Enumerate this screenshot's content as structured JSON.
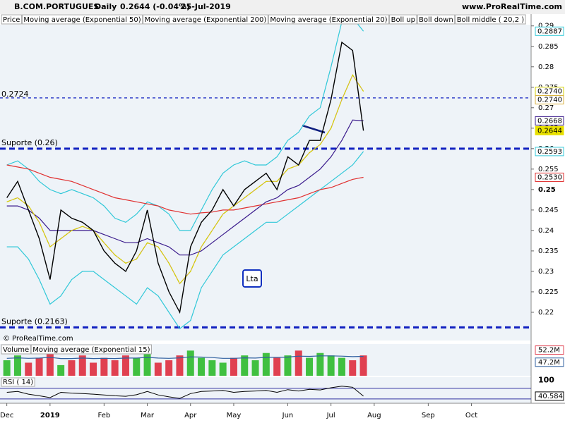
{
  "header": {
    "symbol": "B.COM.PORTUGUES",
    "period": "Daily",
    "quote": "0.2644 (-0.04%)",
    "date": "25-Jul-2019",
    "site": "www.ProRealTime.com"
  },
  "copyright": "© ProRealTime.com",
  "chart_data": {
    "type": "line",
    "categories": [
      "Dec",
      null,
      null,
      null,
      "2019",
      null,
      null,
      null,
      null,
      "Feb",
      null,
      null,
      null,
      "Mar",
      null,
      null,
      null,
      "Apr",
      null,
      null,
      null,
      "May",
      null,
      null,
      null,
      null,
      "Jun",
      null,
      null,
      null,
      "Jul",
      null,
      null,
      null,
      "Aug",
      null,
      null,
      null,
      null,
      "Sep",
      null,
      null,
      null,
      "Oct",
      null,
      null,
      null,
      null
    ],
    "series": [
      {
        "name": "Price",
        "color": "#000000",
        "values": [
          0.248,
          0.252,
          0.245,
          0.238,
          0.228,
          0.245,
          0.243,
          0.242,
          0.24,
          0.235,
          0.232,
          0.23,
          0.235,
          0.245,
          0.232,
          0.225,
          0.22,
          0.236,
          0.242,
          0.245,
          0.25,
          0.246,
          0.25,
          0.252,
          0.254,
          0.25,
          0.258,
          0.256,
          0.262,
          0.262,
          0.272,
          0.286,
          0.284,
          0.2644,
          null,
          null,
          null,
          null,
          null,
          null,
          null,
          null,
          null,
          null,
          null,
          null,
          null,
          null
        ]
      },
      {
        "name": "Moving average (Exponential 50)",
        "color": "#3a1a8c",
        "values": [
          0.246,
          0.246,
          0.245,
          0.243,
          0.24,
          0.24,
          0.24,
          0.24,
          0.24,
          0.239,
          0.238,
          0.237,
          0.237,
          0.238,
          0.237,
          0.236,
          0.234,
          0.234,
          0.235,
          0.237,
          0.239,
          0.241,
          0.243,
          0.245,
          0.247,
          0.248,
          0.25,
          0.251,
          0.253,
          0.255,
          0.258,
          0.262,
          0.267,
          0.2668,
          null,
          null,
          null,
          null,
          null,
          null,
          null,
          null,
          null,
          null,
          null,
          null,
          null,
          null
        ]
      },
      {
        "name": "Moving average (Exponential 200)",
        "color": "#e03030",
        "values": [
          0.256,
          0.2555,
          0.255,
          0.254,
          0.253,
          0.2525,
          0.252,
          0.251,
          0.25,
          0.249,
          0.248,
          0.2475,
          0.247,
          0.2465,
          0.246,
          0.245,
          0.2445,
          0.244,
          0.2443,
          0.2445,
          0.245,
          0.245,
          0.2455,
          0.246,
          0.2465,
          0.247,
          0.2475,
          0.248,
          0.249,
          0.25,
          0.2505,
          0.2515,
          0.2525,
          0.253,
          null,
          null,
          null,
          null,
          null,
          null,
          null,
          null,
          null,
          null,
          null,
          null,
          null,
          null
        ]
      },
      {
        "name": "Moving average (Exponential 20)",
        "color": "#d4d000",
        "values": [
          0.247,
          0.248,
          0.246,
          0.242,
          0.236,
          0.238,
          0.24,
          0.241,
          0.24,
          0.237,
          0.234,
          0.232,
          0.233,
          0.237,
          0.236,
          0.232,
          0.227,
          0.23,
          0.236,
          0.24,
          0.244,
          0.246,
          0.248,
          0.25,
          0.252,
          0.252,
          0.255,
          0.256,
          0.259,
          0.261,
          0.265,
          0.272,
          0.278,
          0.274,
          null,
          null,
          null,
          null,
          null,
          null,
          null,
          null,
          null,
          null,
          null,
          null,
          null,
          null
        ]
      },
      {
        "name": "Boll up",
        "color": "#30c8d8",
        "values": [
          0.256,
          0.257,
          0.255,
          0.252,
          0.25,
          0.249,
          0.25,
          0.249,
          0.248,
          0.246,
          0.243,
          0.242,
          0.244,
          0.247,
          0.246,
          0.244,
          0.24,
          0.24,
          0.245,
          0.25,
          0.254,
          0.256,
          0.257,
          0.256,
          0.256,
          0.258,
          0.262,
          0.264,
          0.268,
          0.27,
          0.28,
          0.291,
          0.292,
          0.2887,
          null,
          null,
          null,
          null,
          null,
          null,
          null,
          null,
          null,
          null,
          null,
          null,
          null,
          null
        ]
      },
      {
        "name": "Boll down",
        "color": "#30c8d8",
        "values": [
          0.236,
          0.236,
          0.233,
          0.228,
          0.222,
          0.224,
          0.228,
          0.23,
          0.23,
          0.228,
          0.226,
          0.224,
          0.222,
          0.226,
          0.224,
          0.22,
          0.216,
          0.218,
          0.226,
          0.23,
          0.234,
          0.236,
          0.238,
          0.24,
          0.242,
          0.242,
          0.244,
          0.246,
          0.248,
          0.25,
          0.252,
          0.254,
          0.256,
          0.2593,
          null,
          null,
          null,
          null,
          null,
          null,
          null,
          null,
          null,
          null,
          null,
          null,
          null,
          null
        ]
      },
      {
        "name": "Boll middle ( 20,2 )",
        "color": "#d8b040",
        "values": [
          0.247,
          0.248,
          0.246,
          0.242,
          0.236,
          0.238,
          0.24,
          0.241,
          0.24,
          0.237,
          0.234,
          0.232,
          0.233,
          0.237,
          0.236,
          0.232,
          0.227,
          0.23,
          0.236,
          0.24,
          0.244,
          0.246,
          0.248,
          0.25,
          0.252,
          0.252,
          0.255,
          0.256,
          0.259,
          0.261,
          0.265,
          0.272,
          0.278,
          0.274,
          null,
          null,
          null,
          null,
          null,
          null,
          null,
          null,
          null,
          null,
          null,
          null,
          null,
          null
        ]
      }
    ],
    "ylim": [
      0.2131,
      0.2903
    ],
    "yticks": [
      0.22,
      0.225,
      0.23,
      0.235,
      0.24,
      0.245,
      0.25,
      0.255,
      0.26,
      0.265,
      0.27,
      0.275,
      0.28,
      0.285,
      0.29
    ],
    "bold_tick": 0.25,
    "levels": [
      {
        "value": 0.2724
      },
      {
        "value": 0.26,
        "label": "Suporte (0.26)"
      },
      {
        "value": 0.2163,
        "label": "Suporte (0.2163)"
      }
    ],
    "price_tags": [
      {
        "value": 0.2887,
        "color": "#30c8d8"
      },
      {
        "value": {
          "value": 0.274,
          "label": "0.2740"
        },
        "color": "#d4d000"
      },
      {
        "value": {
          "value": 0.274,
          "label": "0.2740"
        },
        "color": "#d8b040"
      },
      {
        "value": 0.2668,
        "color": "#3a1a8c"
      },
      {
        "value": 0.2644,
        "color": "#e8e000"
      },
      {
        "value": 0.2593,
        "color": "#30c8d8"
      },
      {
        "value": {
          "value": 0.253,
          "label": "0.2530"
        },
        "color": "#e03030"
      }
    ],
    "annotation": "Lta",
    "volume": {
      "labels": [
        "Volume",
        "Moving average (Exponential 15)"
      ],
      "values": [
        48000000,
        50000000,
        47000000,
        49000000,
        51000000,
        46000000,
        48000000,
        50000000,
        47000000,
        49000000,
        48000000,
        50000000,
        49000000,
        51000000,
        47000000,
        48000000,
        50000000,
        52000000,
        49000000,
        48000000,
        47000000,
        49000000,
        50000000,
        48000000,
        51000000,
        49000000,
        50000000,
        52000000,
        49000000,
        51000000,
        50000000,
        49000000,
        48000000,
        50000000
      ],
      "ema": [
        48800000,
        49000000,
        48800000,
        48900000,
        49200000,
        48700000,
        48700000,
        48900000,
        48700000,
        48800000,
        48700000,
        48900000,
        48900000,
        49200000,
        48900000,
        48800000,
        49000000,
        49400000,
        49300000,
        49100000,
        48800000,
        48800000,
        49000000,
        48900000,
        49200000,
        49200000,
        49300000,
        49700000,
        49600000,
        49800000,
        49800000,
        49700000,
        49500000,
        49600000
      ],
      "up_color": "#40c040",
      "down_color": "#e04050",
      "ema_color": "#3060a0",
      "ylim": [
        41600000,
        54700000
      ],
      "tags": [
        {
          "value": 52200000,
          "label": "52.2M"
        },
        {
          "value": 47200000,
          "label": "47.2M"
        }
      ]
    },
    "rsi": {
      "label": "RSI ( 14)",
      "values": [
        55,
        58,
        48,
        42,
        35,
        55,
        52,
        50,
        48,
        45,
        42,
        40,
        46,
        58,
        45,
        38,
        32,
        50,
        58,
        60,
        62,
        55,
        58,
        60,
        62,
        55,
        65,
        60,
        66,
        64,
        72,
        78,
        74,
        40.584
      ],
      "color": "#000000",
      "ylim": [
        13.8,
        111.9
      ],
      "levels": [
        70,
        30
      ],
      "tags": [
        100,
        40.584
      ]
    }
  }
}
